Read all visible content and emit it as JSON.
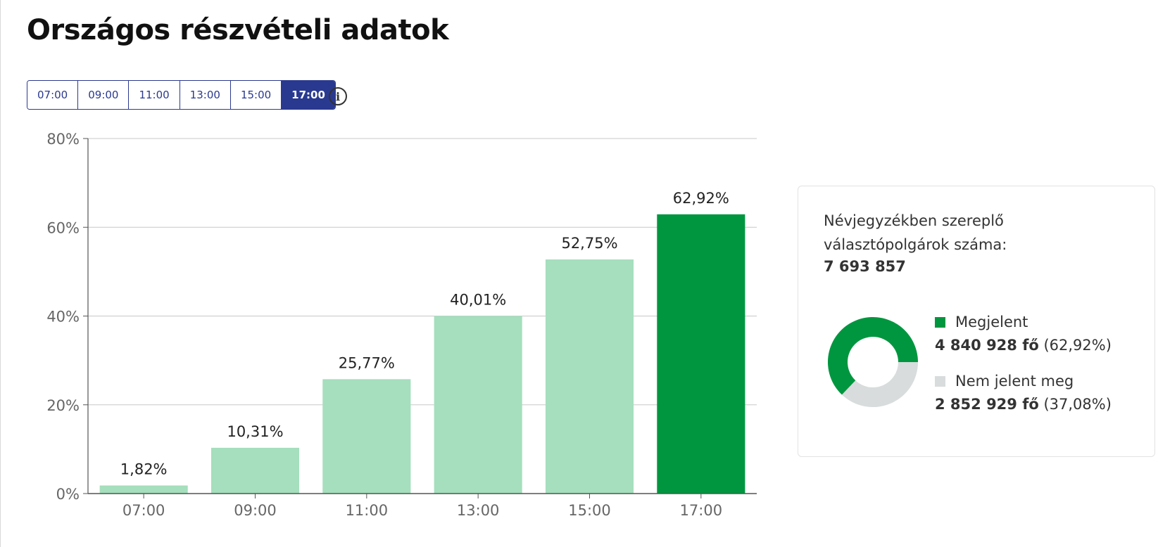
{
  "page": {
    "title": "Országos részvételi adatok"
  },
  "time_tabs": {
    "items": [
      "07:00",
      "09:00",
      "11:00",
      "13:00",
      "15:00",
      "17:00"
    ],
    "active_index": 5
  },
  "info_icon": "info-icon",
  "chart_data": {
    "type": "bar",
    "categories": [
      "07:00",
      "09:00",
      "11:00",
      "13:00",
      "15:00",
      "17:00"
    ],
    "values": [
      1.82,
      10.31,
      25.77,
      40.01,
      52.75,
      62.92
    ],
    "value_labels": [
      "1,82%",
      "10,31%",
      "25,77%",
      "40,01%",
      "52,75%",
      "62,92%"
    ],
    "ylim": [
      0,
      80
    ],
    "yticks": [
      0,
      20,
      40,
      60,
      80
    ],
    "ytick_labels": [
      "0%",
      "20%",
      "40%",
      "60%",
      "80%"
    ],
    "grid": true,
    "highlight_index": 5,
    "colors": {
      "bar": "#a5dfbd",
      "highlight": "#00963f",
      "grid": "#c8c8c8",
      "axis": "#555555",
      "tick_text": "#666666",
      "label_text": "#222222"
    }
  },
  "summary": {
    "title": "Névjegyzékben szereplő választópolgárok száma:",
    "total": "7 693 857",
    "donut": {
      "present_fraction": 0.6292,
      "present_color": "#00963f",
      "absent_color": "#d8dcdc"
    },
    "legend": [
      {
        "label": "Megjelent",
        "count": "4 840 928 fő",
        "percent": "(62,92%)",
        "color": "#00963f"
      },
      {
        "label": "Nem jelent meg",
        "count": "2 852 929 fő",
        "percent": "(37,08%)",
        "color": "#d8dcdc"
      }
    ]
  }
}
